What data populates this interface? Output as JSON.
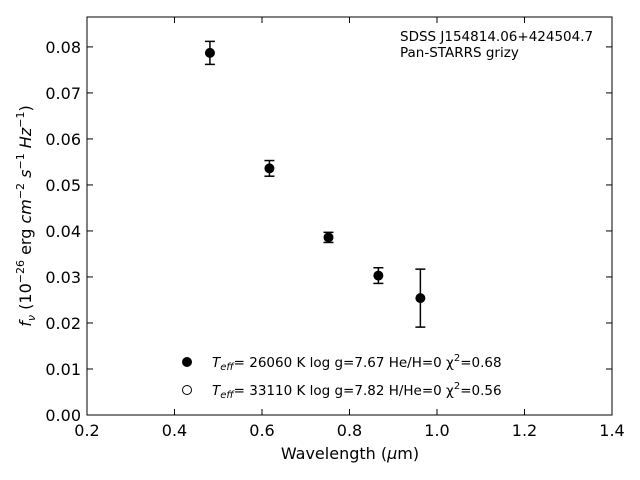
{
  "chart_data": {
    "type": "scatter",
    "title": "",
    "xlabel": "Wavelength (μm)",
    "ylabel": "f_ν (10^-26 erg cm^-2 s^-1 Hz^-1)",
    "xlim": [
      0.2,
      1.4
    ],
    "ylim": [
      0.0,
      0.0865
    ],
    "x_ticks": [
      0.2,
      0.4,
      0.6,
      0.8,
      1.0,
      1.2,
      1.4
    ],
    "x_tick_labels": [
      "0.2",
      "0.4",
      "0.6",
      "0.8",
      "1.0",
      "1.2",
      "1.4"
    ],
    "y_ticks": [
      0.0,
      0.01,
      0.02,
      0.03,
      0.04,
      0.05,
      0.06,
      0.07,
      0.08
    ],
    "y_tick_labels": [
      "0.00",
      "0.01",
      "0.02",
      "0.03",
      "0.04",
      "0.05",
      "0.06",
      "0.07",
      "0.08"
    ],
    "grid": false,
    "annotations": [
      "SDSS J154814.06+424504.7",
      "Pan-STARRS grizy"
    ],
    "series": [
      {
        "marker": "filled-circle",
        "points": [
          {
            "x": 0.481,
            "y": 0.0787,
            "yerr": 0.0025
          },
          {
            "x": 0.617,
            "y": 0.0536,
            "yerr": 0.0017
          },
          {
            "x": 0.752,
            "y": 0.0386,
            "yerr": 0.0011
          },
          {
            "x": 0.866,
            "y": 0.0303,
            "yerr": 0.0017
          },
          {
            "x": 0.962,
            "y": 0.0254,
            "yerr": 0.0063
          }
        ]
      }
    ],
    "legend": {
      "placement": "lower-center",
      "entries": [
        {
          "marker": "filled-circle",
          "teff_label": "T",
          "teff_sub": "eff",
          "text": "= 26060 K  log g=7.67  He/H=0  χ",
          "sup": "2",
          "tail": "=0.68"
        },
        {
          "marker": "open-circle",
          "teff_label": "T",
          "teff_sub": "eff",
          "text": "= 33110 K  log g=7.82  H/He=0  χ",
          "sup": "2",
          "tail": "=0.56"
        }
      ]
    },
    "colors": {
      "marker": "#000000",
      "axes": "#000000",
      "background": "#ffffff"
    }
  }
}
